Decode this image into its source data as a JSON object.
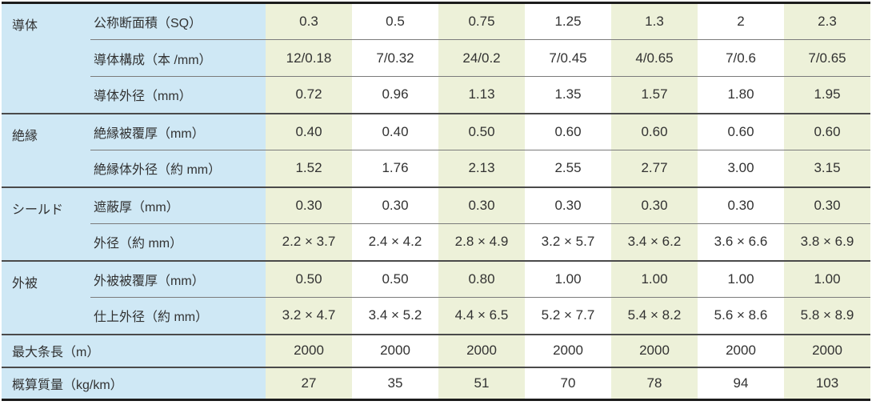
{
  "t": {
    "colors": {
      "label_bg": "#cfe8f5",
      "value_bg_alt": "#edf1d9",
      "value_bg": "#ffffff",
      "border_heavy": "#1c1c1c",
      "row_line": "#7b7b7b",
      "section_line": "#4a4a4a",
      "text": "#323232"
    },
    "sections": [
      {
        "category": "導体",
        "rows": [
          {
            "label": "公称断面積（SQ）",
            "values": [
              "0.3",
              "0.5",
              "0.75",
              "1.25",
              "1.3",
              "2",
              "2.3"
            ]
          },
          {
            "label": "導体構成（本 /mm）",
            "values": [
              "12/0.18",
              "7/0.32",
              "24/0.2",
              "7/0.45",
              "4/0.65",
              "7/0.6",
              "7/0.65"
            ]
          },
          {
            "label": "導体外径（mm）",
            "values": [
              "0.72",
              "0.96",
              "1.13",
              "1.35",
              "1.57",
              "1.80",
              "1.95"
            ]
          }
        ]
      },
      {
        "category": "絶縁",
        "rows": [
          {
            "label": "絶縁被覆厚（mm）",
            "values": [
              "0.40",
              "0.40",
              "0.50",
              "0.60",
              "0.60",
              "0.60",
              "0.60"
            ]
          },
          {
            "label": "絶縁体外径（約 mm）",
            "values": [
              "1.52",
              "1.76",
              "2.13",
              "2.55",
              "2.77",
              "3.00",
              "3.15"
            ]
          }
        ]
      },
      {
        "category": "シールド",
        "rows": [
          {
            "label": "遮蔽厚（mm）",
            "values": [
              "0.30",
              "0.30",
              "0.30",
              "0.30",
              "0.30",
              "0.30",
              "0.30"
            ]
          },
          {
            "label": "外径（約 mm）",
            "values": [
              "2.2 × 3.7",
              "2.4 × 4.2",
              "2.8 × 4.9",
              "3.2 × 5.7",
              "3.4 × 6.2",
              "3.6 × 6.6",
              "3.8 × 6.9"
            ]
          }
        ]
      },
      {
        "category": "外被",
        "rows": [
          {
            "label": "外被被覆厚（mm）",
            "values": [
              "0.50",
              "0.50",
              "0.80",
              "1.00",
              "1.00",
              "1.00",
              "1.00"
            ]
          },
          {
            "label": "仕上外径（約 mm）",
            "values": [
              "3.2 × 4.7",
              "3.4 × 5.2",
              "4.4 × 6.5",
              "5.2 × 7.7",
              "5.4 × 8.2",
              "5.6 × 8.6",
              "5.8 × 8.9"
            ]
          }
        ]
      }
    ],
    "footer_rows": [
      {
        "label": "最大条長（m）",
        "values": [
          "2000",
          "2000",
          "2000",
          "2000",
          "2000",
          "2000",
          "2000"
        ]
      },
      {
        "label": "概算質量（kg/km）",
        "values": [
          "27",
          "35",
          "51",
          "70",
          "78",
          "94",
          "103"
        ]
      }
    ]
  }
}
